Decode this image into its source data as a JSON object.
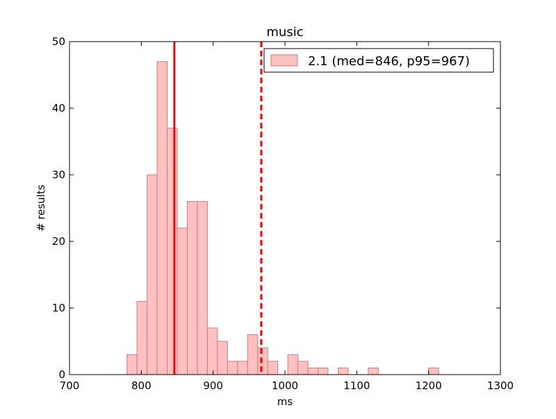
{
  "chart_data": {
    "type": "bar",
    "title": "music",
    "xlabel": "ms",
    "ylabel": "# results",
    "xlim": [
      700,
      1300
    ],
    "ylim": [
      0,
      50
    ],
    "x_ticks": [
      "700",
      "800",
      "900",
      "1000",
      "1100",
      "1200",
      "1300"
    ],
    "y_ticks": [
      "0",
      "10",
      "20",
      "30",
      "40",
      "50"
    ],
    "grid": false,
    "legend_position": "top-right",
    "bin_width": 14,
    "series": [
      {
        "name": "2.1 (med=846, p95=967)",
        "color": "#ffc0c0",
        "edge_color": "#c08080",
        "bins": [
          {
            "x0": 780,
            "count": 3
          },
          {
            "x0": 794,
            "count": 11
          },
          {
            "x0": 808,
            "count": 30
          },
          {
            "x0": 822,
            "count": 47
          },
          {
            "x0": 836,
            "count": 37
          },
          {
            "x0": 850,
            "count": 22
          },
          {
            "x0": 864,
            "count": 26
          },
          {
            "x0": 878,
            "count": 26
          },
          {
            "x0": 892,
            "count": 7
          },
          {
            "x0": 906,
            "count": 5
          },
          {
            "x0": 920,
            "count": 2
          },
          {
            "x0": 934,
            "count": 2
          },
          {
            "x0": 948,
            "count": 6
          },
          {
            "x0": 962,
            "count": 4
          },
          {
            "x0": 976,
            "count": 2
          },
          {
            "x0": 990,
            "count": 0
          },
          {
            "x0": 1004,
            "count": 3
          },
          {
            "x0": 1018,
            "count": 2
          },
          {
            "x0": 1032,
            "count": 1
          },
          {
            "x0": 1046,
            "count": 1
          },
          {
            "x0": 1060,
            "count": 0
          },
          {
            "x0": 1074,
            "count": 1
          },
          {
            "x0": 1088,
            "count": 0
          },
          {
            "x0": 1102,
            "count": 0
          },
          {
            "x0": 1116,
            "count": 1
          },
          {
            "x0": 1130,
            "count": 0
          },
          {
            "x0": 1144,
            "count": 0
          },
          {
            "x0": 1158,
            "count": 0
          },
          {
            "x0": 1172,
            "count": 0
          },
          {
            "x0": 1186,
            "count": 0
          },
          {
            "x0": 1200,
            "count": 1
          }
        ]
      }
    ],
    "vlines": [
      {
        "x": 846,
        "style": "solid",
        "color": "#ff0000"
      },
      {
        "x": 967,
        "style": "dashed",
        "color": "#ff0000"
      }
    ]
  }
}
